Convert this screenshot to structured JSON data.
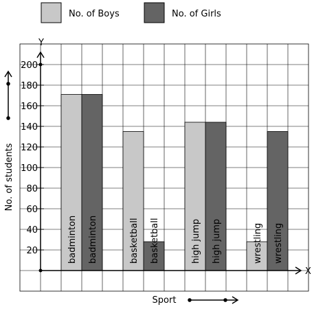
{
  "chart_data": {
    "type": "bar",
    "title": "",
    "xlabel": "Sport",
    "ylabel": "No. of students",
    "x_axis_letter": "X",
    "y_axis_letter": "Y",
    "ylim": [
      -20,
      220
    ],
    "yticks": [
      {
        "value": 20,
        "label": "20"
      },
      {
        "value": 40,
        "label": "40"
      },
      {
        "value": 60,
        "label": "60"
      },
      {
        "value": 80,
        "label": "80"
      },
      {
        "value": 100,
        "label": "100"
      },
      {
        "value": 120,
        "label": "120"
      },
      {
        "value": 140,
        "label": "140"
      },
      {
        "value": 160,
        "label": "160"
      },
      {
        "value": 180,
        "label": "180"
      },
      {
        "value": 200,
        "label": "200"
      }
    ],
    "grid": true,
    "legend_position": "top",
    "categories": [
      "badminton",
      "basketball",
      "high jump",
      "wrestling"
    ],
    "series": [
      {
        "name": "No. of Boys",
        "color": "#c8c8c8",
        "values": [
          171,
          135,
          144,
          28
        ]
      },
      {
        "name": "No. of Girls",
        "color": "#646464",
        "values": [
          171,
          28,
          144,
          135
        ]
      }
    ]
  }
}
